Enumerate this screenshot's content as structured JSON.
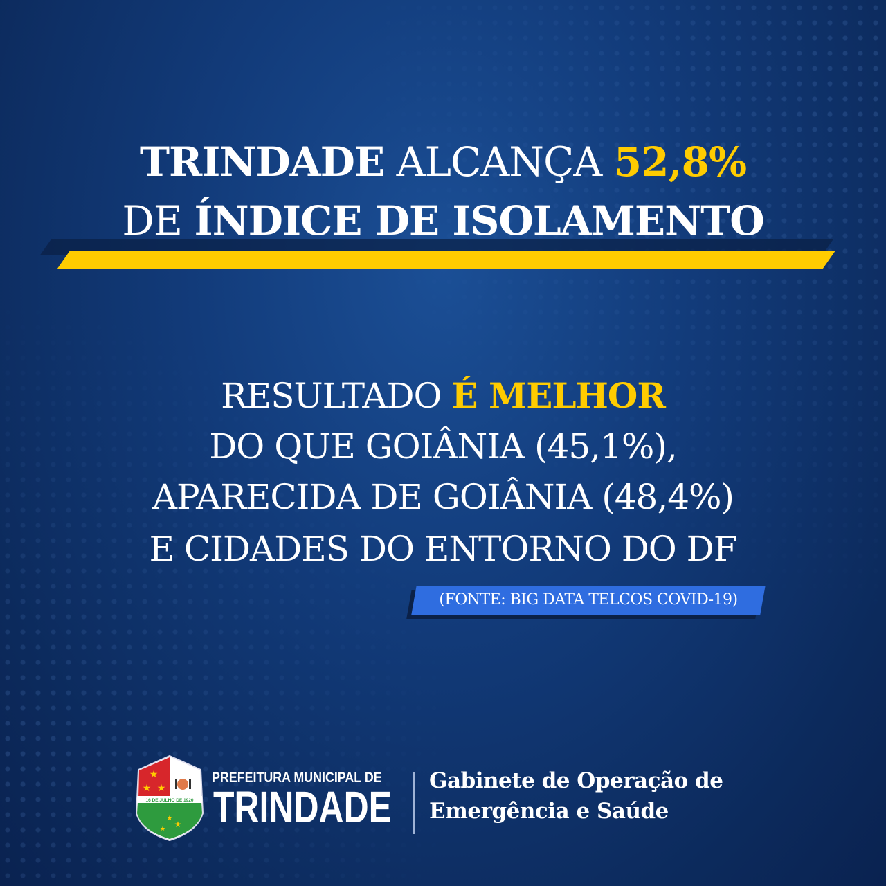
{
  "headline": {
    "line1_bold": "TRINDADE",
    "line1_regular": "ALCANÇA",
    "line1_highlight": "52,8%",
    "line2_regular": "DE",
    "line2_bold": "ÍNDICE DE ISOLAMENTO"
  },
  "body": {
    "line1_regular": "RESULTADO",
    "line1_highlight": "É MELHOR",
    "line2": "DO QUE GOIÂNIA (45,1%),",
    "line3": "APARECIDA DE GOIÂNIA (48,4%)",
    "line4": "E CIDADES DO ENTORNO DO DF"
  },
  "source": "(FONTE: BIG DATA TELCOS COVID-19)",
  "footer": {
    "crest_text": "16 DE JULHO DE 1920",
    "prefeitura": "PREFEITURA MUNICIPAL DE",
    "city": "TRINDADE",
    "office_line1": "Gabinete de Operação de",
    "office_line2": "Emergência e Saúde"
  },
  "colors": {
    "accent": "#ffcc00",
    "badge": "#2f6de0",
    "background": "#123b7a"
  }
}
